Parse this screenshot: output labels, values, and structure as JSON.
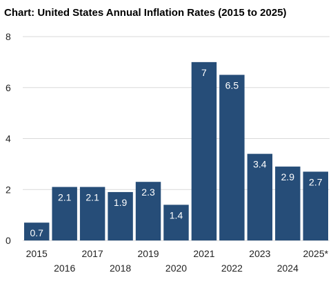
{
  "chart_data": {
    "type": "bar",
    "title": "Chart: United States Annual Inflation Rates (2015 to 2025)",
    "categories": [
      "2015",
      "2016",
      "2017",
      "2018",
      "2019",
      "2020",
      "2021",
      "2022",
      "2023",
      "2024",
      "2025*"
    ],
    "values": [
      0.7,
      2.1,
      2.1,
      1.9,
      2.3,
      1.4,
      7,
      6.5,
      3.4,
      2.9,
      2.7
    ],
    "value_labels": [
      "0.7",
      "2.1",
      "2.1",
      "1.9",
      "2.3",
      "1.4",
      "7",
      "6.5",
      "3.4",
      "2.9",
      "2.7"
    ],
    "xlabel": "",
    "ylabel": "",
    "ylim": [
      0,
      8
    ],
    "y_ticks": [
      "0",
      "2",
      "4",
      "6",
      "8"
    ],
    "grid": true,
    "legend": "none",
    "bar_color": "#264d78",
    "grid_color": "#d9d9d9"
  }
}
